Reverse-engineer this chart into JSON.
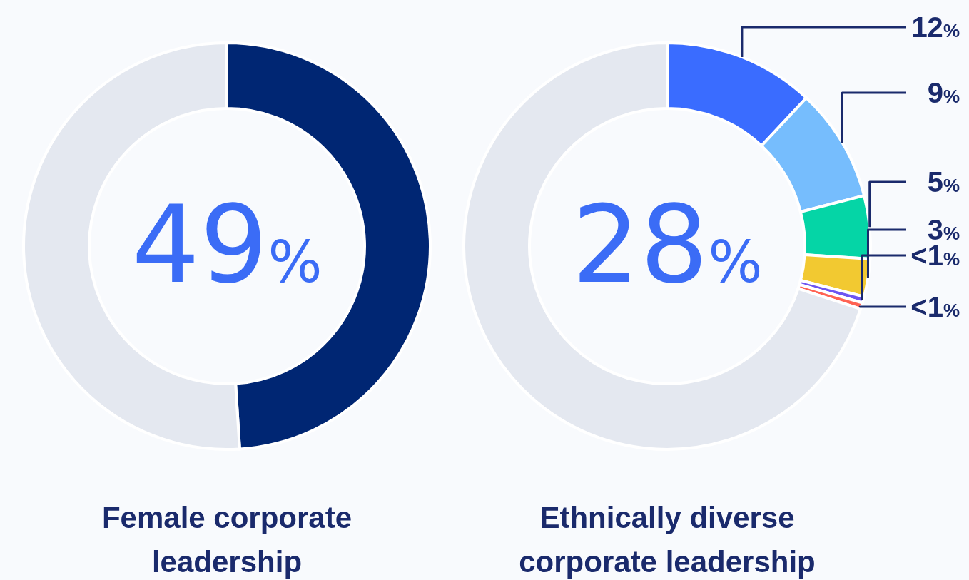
{
  "chart_data": [
    {
      "type": "donut",
      "title": "Female corporate leadership",
      "categories": [
        null,
        null
      ],
      "values": [
        49,
        51
      ],
      "colors": [
        "#002673",
        "#e4e8f0"
      ],
      "annotations": [
        "49%"
      ]
    },
    {
      "type": "donut",
      "title": "Ethnically diverse corporate leadership",
      "categories": [
        null,
        null,
        null,
        null,
        null,
        null,
        null
      ],
      "values": [
        12,
        9,
        5,
        3,
        0.5,
        0.5,
        70
      ],
      "colors": [
        "#3a6cff",
        "#76bdfd",
        "#05d5a6",
        "#f2c931",
        "#6d55f2",
        "#ff6353",
        "#e4e8f0"
      ],
      "value_labels": [
        "12%",
        "9%",
        "5%",
        "3%",
        "<1%",
        "<1%",
        null
      ],
      "annotations": [
        "28%"
      ]
    }
  ]
}
